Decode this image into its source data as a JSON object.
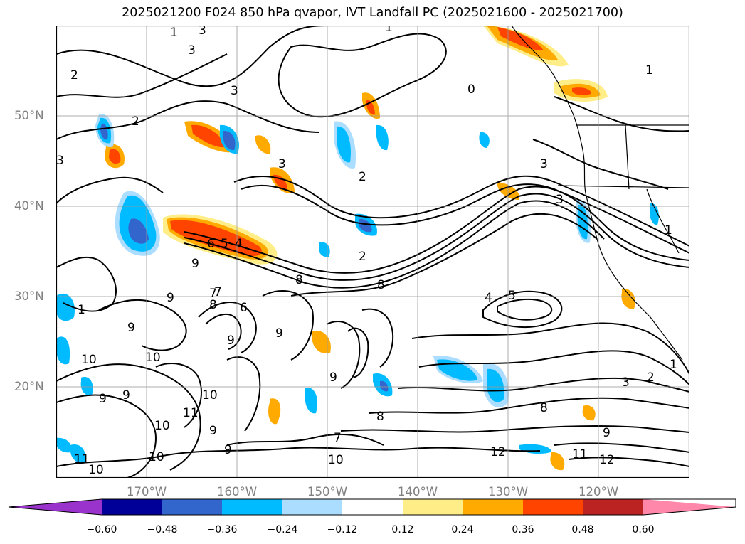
{
  "title": "2025021200 F024 850 hPa qvapor, IVT Landfall PC (2025021600 - 2025021700)",
  "lat_labels": [
    "50°N",
    "40°N",
    "30°N",
    "20°N"
  ],
  "lon_labels": [
    "170°W",
    "160°W",
    "150°W",
    "140°W",
    "130°W",
    "120°W"
  ],
  "colorbar": {
    "colors": [
      "#9933cc",
      "#000099",
      "#3366cc",
      "#00bbff",
      "#aaddff",
      "#ffffff",
      "#ffee88",
      "#ffaa00",
      "#ff4400",
      "#bb2222",
      "#ff88aa"
    ],
    "ticks": [
      "−0.60",
      "−0.48",
      "−0.36",
      "−0.24",
      "−0.12",
      "0.12",
      "0.24",
      "0.36",
      "0.48",
      "0.60"
    ]
  },
  "contour_labels": [
    "3",
    "1",
    "2",
    "3",
    "0",
    "1",
    "2",
    "3",
    "2",
    "3",
    "3",
    "3",
    "3",
    "6",
    "5",
    "4",
    "2",
    "1",
    "9",
    "8",
    "8",
    "7",
    "9",
    "8",
    "4",
    "5",
    "6",
    "9",
    "10",
    "9",
    "10",
    "9",
    "10",
    "7",
    "9",
    "10",
    "11",
    "9",
    "9",
    "10",
    "9",
    "10",
    "11",
    "9",
    "8",
    "7",
    "10",
    "8",
    "9",
    "12",
    "11",
    "12",
    "3",
    "2",
    "1",
    "1",
    "1"
  ]
}
